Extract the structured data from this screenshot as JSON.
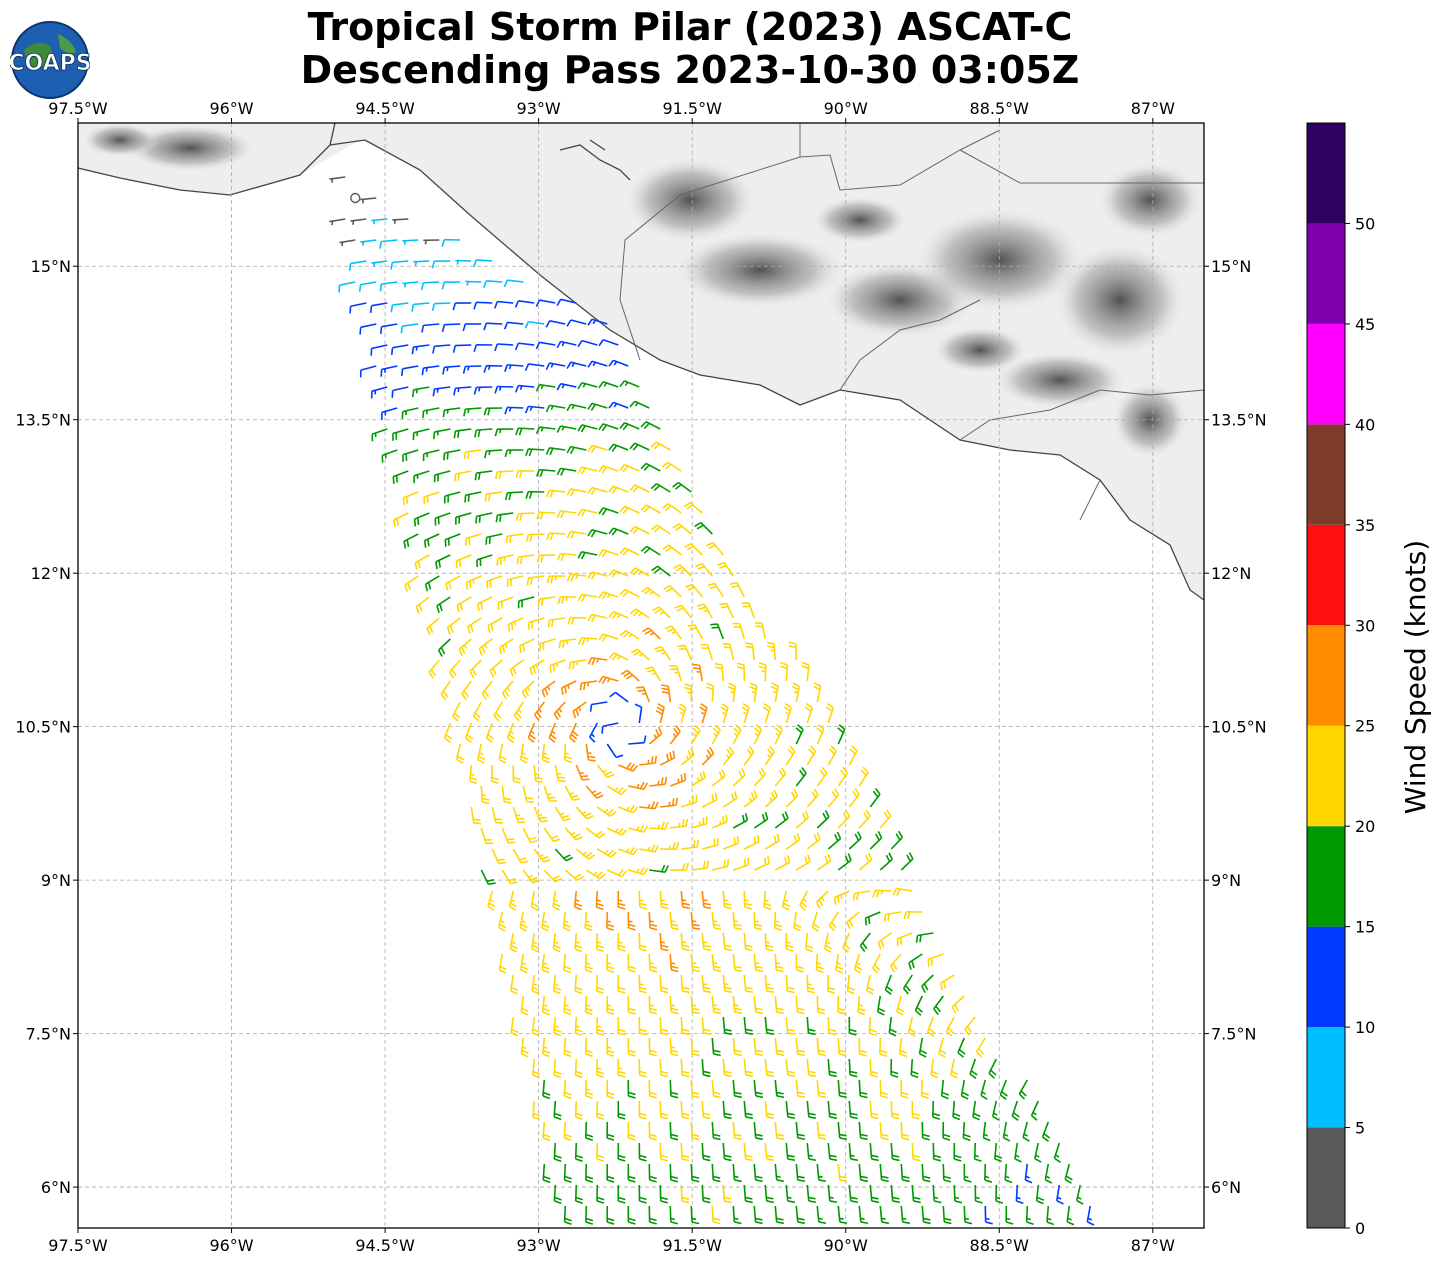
{
  "title": {
    "line1": "Tropical Storm Pilar (2023) ASCAT-C",
    "line2": "Descending Pass 2023-10-30 03:05Z"
  },
  "logo": {
    "text": "COAPS",
    "icon": "globe-icon"
  },
  "map": {
    "lon_range": [
      -97.5,
      -86.5
    ],
    "lat_range": [
      5.6,
      16.4
    ],
    "x_ticks": [
      {
        "value": -97.5,
        "label": "97.5°W"
      },
      {
        "value": -96.0,
        "label": "96°W"
      },
      {
        "value": -94.5,
        "label": "94.5°W"
      },
      {
        "value": -93.0,
        "label": "93°W"
      },
      {
        "value": -91.5,
        "label": "91.5°W"
      },
      {
        "value": -90.0,
        "label": "90°W"
      },
      {
        "value": -88.5,
        "label": "88.5°W"
      },
      {
        "value": -87.0,
        "label": "87°W"
      }
    ],
    "y_ticks": [
      {
        "value": 15.0,
        "label": "15°N"
      },
      {
        "value": 13.5,
        "label": "13.5°N"
      },
      {
        "value": 12.0,
        "label": "12°N"
      },
      {
        "value": 10.5,
        "label": "10.5°N"
      },
      {
        "value": 9.0,
        "label": "9°N"
      },
      {
        "value": 7.5,
        "label": "7.5°N"
      },
      {
        "value": 6.0,
        "label": "6°N"
      }
    ],
    "grid": "dashed",
    "storm_center": {
      "lon": -92.2,
      "lat": 10.5
    }
  },
  "colorbar": {
    "title": "Wind Speed (knots)",
    "ticks": [
      "0",
      "5",
      "10",
      "15",
      "20",
      "25",
      "30",
      "35",
      "40",
      "45",
      "50"
    ],
    "colors": [
      "#595959",
      "#00bfff",
      "#0039ff",
      "#009900",
      "#ffd700",
      "#ff8c00",
      "#ff1010",
      "#803c2a",
      "#ff00ff",
      "#8000b0",
      "#2e0060"
    ]
  }
}
